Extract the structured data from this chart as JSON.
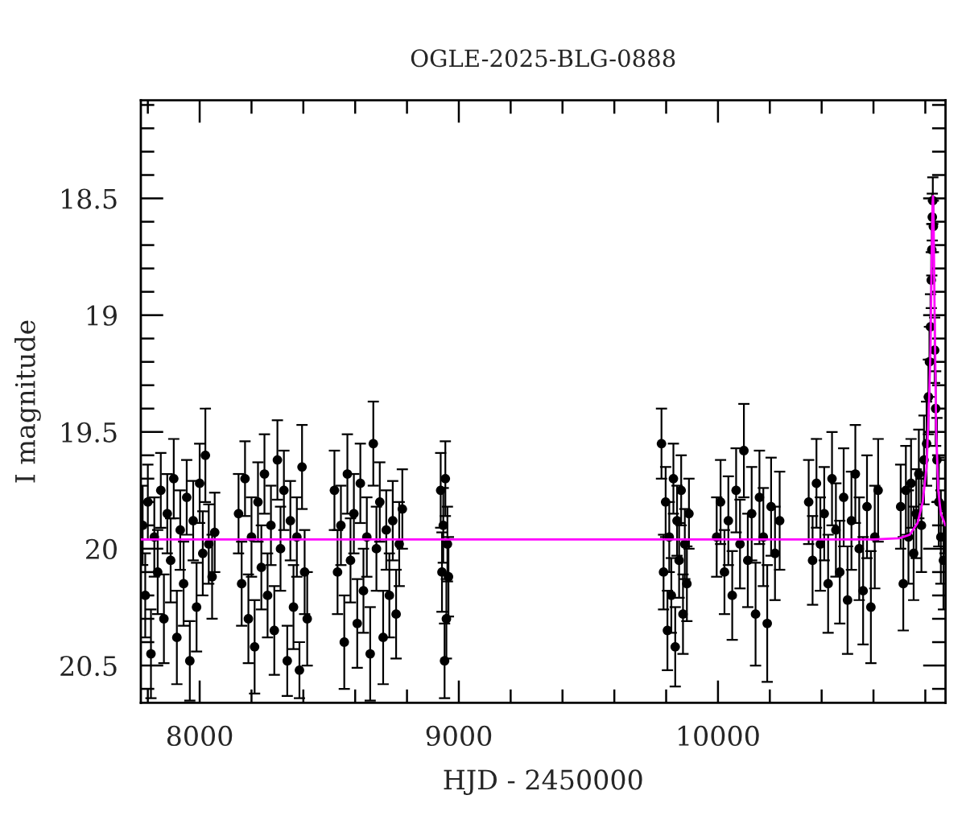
{
  "chart_data": {
    "type": "scatter",
    "title": "OGLE-2025-BLG-0888",
    "xlabel": "HJD - 2450000",
    "ylabel": "I magnitude",
    "xlim": [
      7773,
      10878
    ],
    "ylim": [
      20.66,
      18.08
    ],
    "xticks": [
      {
        "value": 7800,
        "label": null
      },
      8000,
      {
        "value": 8200,
        "label": null
      },
      {
        "value": 8400,
        "label": null
      },
      {
        "value": 8600,
        "label": null
      },
      {
        "value": 8800,
        "label": null
      },
      9000,
      {
        "value": 9200,
        "label": null
      },
      {
        "value": 9400,
        "label": null
      },
      {
        "value": 9600,
        "label": null
      },
      {
        "value": 9800,
        "label": null
      },
      10000,
      {
        "value": 10200,
        "label": null
      },
      {
        "value": 10400,
        "label": null
      },
      {
        "value": 10600,
        "label": null
      },
      {
        "value": 10800,
        "label": null
      }
    ],
    "yticks": [
      {
        "value": 18.1,
        "label": null
      },
      {
        "value": 18.2,
        "label": null
      },
      {
        "value": 18.3,
        "label": null
      },
      {
        "value": 18.4,
        "label": null
      },
      18.5,
      {
        "value": 18.6,
        "label": null
      },
      {
        "value": 18.7,
        "label": null
      },
      {
        "value": 18.8,
        "label": null
      },
      {
        "value": 18.9,
        "label": null
      },
      19,
      {
        "value": 19.1,
        "label": null
      },
      {
        "value": 19.2,
        "label": null
      },
      {
        "value": 19.3,
        "label": null
      },
      {
        "value": 19.4,
        "label": null
      },
      19.5,
      {
        "value": 19.6,
        "label": null
      },
      {
        "value": 19.7,
        "label": null
      },
      {
        "value": 19.8,
        "label": null
      },
      {
        "value": 19.9,
        "label": null
      },
      20,
      {
        "value": 20.1,
        "label": null
      },
      {
        "value": 20.2,
        "label": null
      },
      {
        "value": 20.3,
        "label": null
      },
      {
        "value": 20.4,
        "label": null
      },
      20.5,
      {
        "value": 20.6,
        "label": null
      }
    ],
    "grid": false,
    "series": [
      {
        "color": "#000000",
        "marker": "circle",
        "x": [
          7780,
          7790,
          7800,
          7812,
          7825,
          7838,
          7850,
          7862,
          7875,
          7888,
          7900,
          7912,
          7925,
          7938,
          7950,
          7962,
          7975,
          7988,
          8000,
          8012,
          8022,
          8035,
          8048,
          8058,
          8150,
          8162,
          8175,
          8188,
          8200,
          8212,
          8225,
          8238,
          8250,
          8262,
          8275,
          8288,
          8300,
          8312,
          8325,
          8338,
          8350,
          8362,
          8375,
          8385,
          8395,
          8405,
          8415,
          8520,
          8532,
          8545,
          8558,
          8570,
          8582,
          8595,
          8608,
          8620,
          8632,
          8645,
          8658,
          8670,
          8682,
          8695,
          8708,
          8720,
          8732,
          8745,
          8758,
          8770,
          8782,
          8930,
          8935,
          8940,
          8945,
          8948,
          8952,
          8956,
          8960,
          9782,
          9790,
          9798,
          9805,
          9812,
          9820,
          9828,
          9835,
          9842,
          9850,
          9858,
          9865,
          9872,
          9880,
          9888,
          9995,
          10010,
          10025,
          10040,
          10055,
          10070,
          10085,
          10100,
          10115,
          10130,
          10145,
          10160,
          10175,
          10190,
          10205,
          10220,
          10238,
          10350,
          10365,
          10380,
          10395,
          10410,
          10425,
          10440,
          10455,
          10470,
          10485,
          10500,
          10515,
          10530,
          10545,
          10560,
          10575,
          10590,
          10605,
          10618,
          10705,
          10715,
          10725,
          10735,
          10745,
          10755,
          10765,
          10775,
          10785,
          10795,
          10805,
          10812,
          10816,
          10820,
          10823,
          10825,
          10827,
          10829,
          10831,
          10836,
          10840,
          10845,
          10852,
          10860,
          10870,
          10876
        ],
        "values": [
          19.9,
          20.2,
          19.8,
          20.45,
          19.95,
          20.1,
          19.75,
          20.3,
          19.85,
          20.05,
          19.7,
          20.38,
          19.92,
          20.15,
          19.78,
          20.48,
          19.88,
          20.25,
          19.72,
          20.02,
          19.6,
          19.98,
          20.12,
          19.93,
          19.85,
          20.15,
          19.7,
          20.3,
          19.95,
          20.42,
          19.8,
          20.08,
          19.68,
          20.2,
          19.9,
          20.35,
          19.62,
          20.0,
          19.75,
          20.48,
          19.88,
          20.25,
          19.95,
          20.52,
          19.65,
          20.1,
          20.3,
          19.75,
          20.1,
          19.9,
          20.4,
          19.68,
          20.05,
          19.85,
          20.32,
          19.72,
          20.18,
          19.95,
          20.45,
          19.55,
          20.0,
          19.8,
          20.38,
          19.92,
          20.2,
          19.88,
          20.28,
          19.98,
          19.83,
          19.75,
          20.1,
          19.9,
          20.48,
          19.7,
          20.3,
          19.98,
          20.12,
          19.55,
          20.1,
          19.8,
          20.35,
          19.95,
          20.2,
          19.7,
          20.42,
          19.88,
          20.05,
          19.75,
          20.28,
          19.98,
          20.15,
          19.85,
          19.95,
          19.8,
          20.1,
          19.88,
          20.2,
          19.75,
          19.98,
          19.58,
          20.05,
          19.85,
          20.28,
          19.78,
          19.95,
          20.32,
          19.82,
          20.02,
          19.88,
          19.8,
          20.05,
          19.72,
          19.98,
          19.85,
          20.15,
          19.7,
          19.92,
          20.1,
          19.78,
          20.22,
          19.88,
          19.68,
          20.0,
          20.18,
          19.82,
          20.25,
          19.95,
          19.75,
          19.82,
          20.15,
          19.75,
          19.95,
          19.72,
          20.02,
          19.85,
          19.68,
          19.9,
          19.62,
          19.55,
          19.35,
          19.2,
          19.05,
          18.85,
          18.72,
          18.58,
          18.51,
          18.62,
          19.15,
          19.4,
          19.62,
          19.8,
          19.95,
          20.05,
          19.82
        ],
        "errors": [
          0.17,
          0.18,
          0.16,
          0.19,
          0.17,
          0.18,
          0.16,
          0.19,
          0.17,
          0.18,
          0.17,
          0.2,
          0.17,
          0.18,
          0.16,
          0.17,
          0.17,
          0.19,
          0.17,
          0.18,
          0.2,
          0.17,
          0.18,
          0.17,
          0.17,
          0.18,
          0.16,
          0.19,
          0.17,
          0.2,
          0.17,
          0.18,
          0.17,
          0.18,
          0.17,
          0.19,
          0.17,
          0.18,
          0.17,
          0.15,
          0.17,
          0.18,
          0.17,
          0.12,
          0.18,
          0.18,
          0.2,
          0.17,
          0.18,
          0.17,
          0.2,
          0.17,
          0.18,
          0.17,
          0.19,
          0.17,
          0.18,
          0.17,
          0.2,
          0.18,
          0.18,
          0.17,
          0.2,
          0.17,
          0.18,
          0.17,
          0.19,
          0.18,
          0.17,
          0.16,
          0.17,
          0.16,
          0.16,
          0.16,
          0.17,
          0.16,
          0.17,
          0.15,
          0.16,
          0.15,
          0.17,
          0.15,
          0.16,
          0.15,
          0.17,
          0.15,
          0.16,
          0.15,
          0.17,
          0.15,
          0.16,
          0.15,
          0.17,
          0.18,
          0.18,
          0.19,
          0.19,
          0.18,
          0.19,
          0.2,
          0.2,
          0.2,
          0.22,
          0.2,
          0.21,
          0.25,
          0.21,
          0.2,
          0.21,
          0.18,
          0.19,
          0.19,
          0.2,
          0.2,
          0.21,
          0.2,
          0.2,
          0.22,
          0.21,
          0.23,
          0.21,
          0.21,
          0.22,
          0.23,
          0.22,
          0.24,
          0.22,
          0.22,
          0.18,
          0.2,
          0.19,
          0.2,
          0.19,
          0.2,
          0.19,
          0.19,
          0.2,
          0.19,
          0.18,
          0.16,
          0.15,
          0.14,
          0.12,
          0.11,
          0.1,
          0.1,
          0.11,
          0.14,
          0.16,
          0.18,
          0.19,
          0.2,
          0.21,
          0.2
        ]
      },
      {
        "type": "line",
        "color": "#ff00ff",
        "line_style": "solid",
        "x": [
          7773,
          10600,
          10700,
          10740,
          10770,
          10790,
          10805,
          10815,
          10820,
          10824,
          10828,
          10830,
          10832,
          10836,
          10842,
          10850,
          10860,
          10878
        ],
        "values": [
          19.96,
          19.96,
          19.955,
          19.94,
          19.89,
          19.8,
          19.65,
          19.35,
          19.15,
          18.8,
          18.52,
          18.49,
          18.6,
          19.0,
          19.5,
          19.75,
          19.85,
          19.9
        ]
      }
    ]
  }
}
